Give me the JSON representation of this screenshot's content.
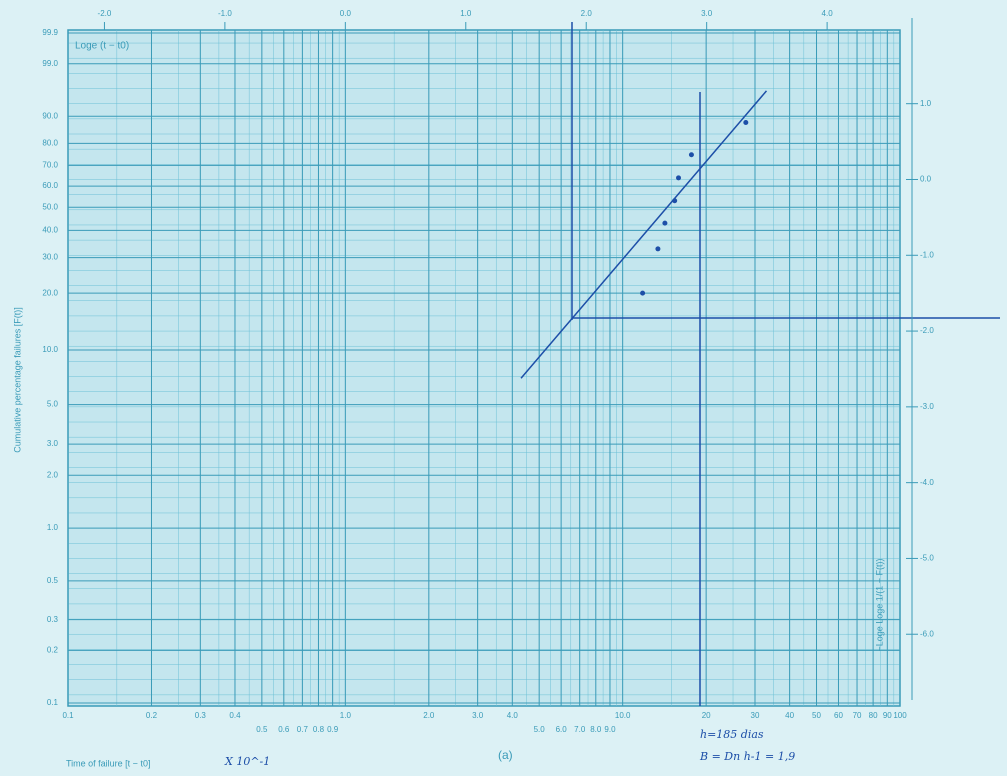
{
  "chart_data": {
    "type": "weibull",
    "top_axis_label": "Loge (t − t0)",
    "x_label": "Time of failure [t − t0]",
    "x_multiplier": "X 10^-1",
    "y_label": "Cumulative percentage failures [F(t)]",
    "right_axis_label": "−Loge Loge 1/(1 − F(t))",
    "panel_label": "(a)",
    "annotations": [
      "h=185 dias",
      "B = Dn h-1 = 1,9"
    ],
    "x_scale": "log",
    "xlim": [
      0.1,
      100
    ],
    "xticks": [
      0.1,
      0.2,
      0.3,
      0.4,
      0.5,
      0.6,
      0.7,
      0.8,
      0.9,
      {
        "value": 1,
        "label": "1.0"
      },
      {
        "value": 2,
        "label": "2.0"
      },
      {
        "value": 3,
        "label": "3.0"
      },
      {
        "value": 4,
        "label": "4.0"
      },
      {
        "value": 5,
        "label": "5.0"
      },
      {
        "value": 6,
        "label": "6.0"
      },
      {
        "value": 7,
        "label": "7.0"
      },
      {
        "value": 8,
        "label": "8.0"
      },
      {
        "value": 9,
        "label": "9.0"
      },
      {
        "value": 10,
        "label": "10.0"
      },
      20,
      30,
      40,
      50,
      60,
      70,
      80,
      90,
      100
    ],
    "x2ticks": [
      {
        "value": -2,
        "label": "-2.0"
      },
      {
        "value": -1,
        "label": "-1.0"
      },
      {
        "value": 0,
        "label": "0.0"
      },
      {
        "value": 1,
        "label": "1.0"
      },
      {
        "value": 2,
        "label": "2.0"
      },
      {
        "value": 3,
        "label": "3.0"
      },
      {
        "value": 4,
        "label": "4.0"
      }
    ],
    "ylim": [
      0.1,
      99.9
    ],
    "yticks": [
      0.1,
      0.2,
      0.3,
      0.5,
      {
        "value": 1,
        "label": "1.0"
      },
      {
        "value": 2,
        "label": "2.0"
      },
      {
        "value": 3,
        "label": "3.0"
      },
      {
        "value": 5,
        "label": "5.0"
      },
      {
        "value": 10,
        "label": "10.0"
      },
      {
        "value": 20,
        "label": "20.0"
      },
      {
        "value": 30,
        "label": "30.0"
      },
      {
        "value": 40,
        "label": "40.0"
      },
      {
        "value": 50,
        "label": "50.0"
      },
      {
        "value": 60,
        "label": "60.0"
      },
      {
        "value": 70,
        "label": "70.0"
      },
      {
        "value": 80,
        "label": "80.0"
      },
      {
        "value": 90,
        "label": "90.0"
      },
      {
        "value": 99,
        "label": "99.0"
      },
      99.9
    ],
    "y2ticks": [
      {
        "value": 1,
        "label": "1.0"
      },
      {
        "value": 0,
        "label": "0.0"
      },
      {
        "value": -1,
        "label": "-1.0"
      },
      {
        "value": -2,
        "label": "-2.0"
      },
      {
        "value": -3,
        "label": "-3.0"
      },
      {
        "value": -4,
        "label": "-4.0"
      },
      {
        "value": -5,
        "label": "-5.0"
      },
      {
        "value": -6,
        "label": "-6.0"
      }
    ],
    "grid": true,
    "points": {
      "color": "#1d4fa8",
      "x": [
        11.8,
        13.4,
        14.2,
        15.4,
        15.9,
        17.7,
        27.8
      ],
      "values": [
        20,
        33,
        43,
        53,
        64,
        75,
        88
      ]
    },
    "fit_line": {
      "color": "#1d4fa8",
      "x": [
        4.3,
        33
      ],
      "values": [
        7,
        96
      ]
    }
  }
}
